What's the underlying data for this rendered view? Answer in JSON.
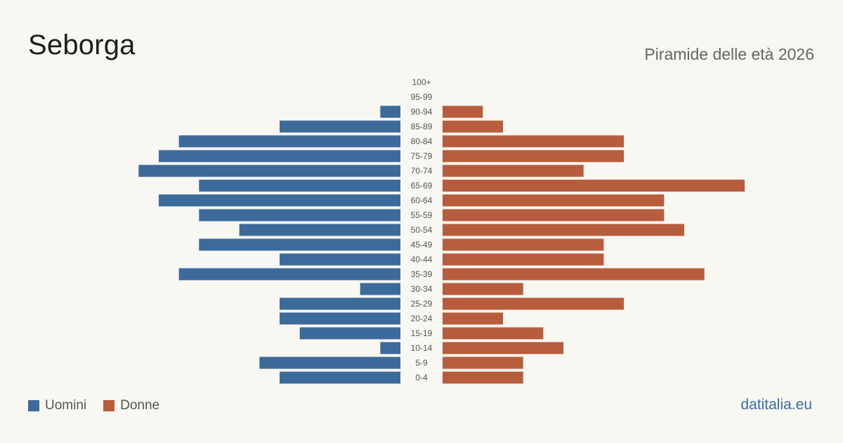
{
  "header": {
    "title": "Seborga",
    "subtitle": "Piramide delle età 2026"
  },
  "legend": {
    "men_label": "Uomini",
    "women_label": "Donne"
  },
  "brand": "datitalia.eu",
  "colors": {
    "men": "#3c6a9a",
    "women": "#b85c3e",
    "background": "#f9f7f2"
  },
  "chart_data": {
    "type": "bar",
    "orientation": "horizontal-pyramid",
    "categories": [
      "100+",
      "95-99",
      "90-94",
      "85-89",
      "80-84",
      "75-79",
      "70-74",
      "65-69",
      "60-64",
      "55-59",
      "50-54",
      "45-49",
      "40-44",
      "35-39",
      "30-34",
      "25-29",
      "20-24",
      "15-19",
      "10-14",
      "5-9",
      "0-4"
    ],
    "series": [
      {
        "name": "Uomini",
        "values": [
          0,
          0,
          1,
          6,
          11,
          12,
          13,
          10,
          12,
          10,
          8,
          10,
          6,
          11,
          2,
          6,
          6,
          5,
          1,
          7,
          6
        ]
      },
      {
        "name": "Donne",
        "values": [
          0,
          0,
          2,
          3,
          9,
          9,
          7,
          15,
          11,
          11,
          12,
          8,
          8,
          13,
          4,
          9,
          3,
          5,
          6,
          4,
          4
        ]
      }
    ],
    "xlim": [
      0,
      15
    ],
    "legend_position": "bottom-left",
    "grid": false
  }
}
